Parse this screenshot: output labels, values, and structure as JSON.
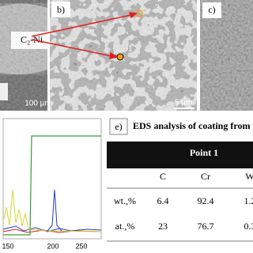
{
  "panel_a": {
    "label": "C₂-Ni",
    "scale": "100 µm"
  },
  "panel_b": {
    "label": "b)",
    "scale": "5 µm",
    "point_1": "1",
    "point_2": "2"
  },
  "panel_c": {
    "label": "c)"
  },
  "spectrum": {
    "xticks": [
      "150",
      "200",
      "250"
    ]
  },
  "table": {
    "label": "e)",
    "title": "EDS analysis of coating from",
    "group": "Point 1",
    "columns": [
      "C",
      "Cr",
      "W"
    ],
    "rows": [
      [
        "wt.,%",
        6.4,
        92.4,
        1.2
      ],
      [
        "at.,%",
        23,
        76.7,
        0.3
      ]
    ]
  }
}
